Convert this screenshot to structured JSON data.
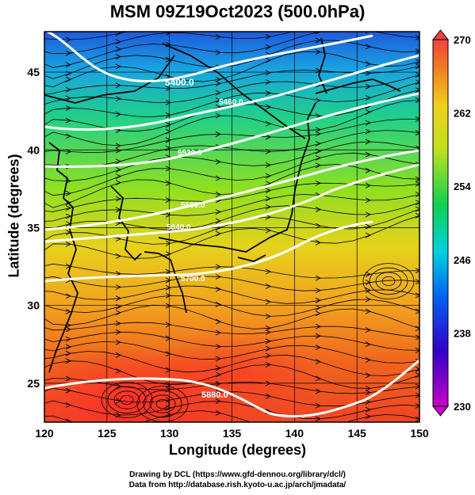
{
  "title": "MSM 09Z19Oct2023 (500.0hPa)",
  "x_axis": {
    "label": "Longitude (degrees)",
    "ticks": [
      "120",
      "125",
      "130",
      "135",
      "140",
      "145",
      "150"
    ],
    "min": 120,
    "max": 150
  },
  "y_axis": {
    "label": "Latitude  (degrees)",
    "ticks": [
      "25",
      "30",
      "35",
      "40",
      "45"
    ],
    "min": 22.5,
    "max": 47.6
  },
  "colorbar": {
    "ticks": [
      "270",
      "262",
      "254",
      "246",
      "238",
      "230"
    ],
    "min": 230,
    "max": 270
  },
  "contours": [
    {
      "label": "5400.0"
    },
    {
      "label": "5460.0"
    },
    {
      "label": "5520.0"
    },
    {
      "label": "5580.0"
    },
    {
      "label": "5640.0"
    },
    {
      "label": "5700.0"
    },
    {
      "label": "5880.0"
    }
  ],
  "credits": {
    "line1": "Drawing by DCL (https://www.gfd-dennou.org/library/dcl/)",
    "line2": "Data from http://database.rish.kyoto-u.ac.jp/arch/jmadata/"
  },
  "colors": {
    "cold": "#1e5adc",
    "warm": "#f04a1e",
    "contour": "#ffffff",
    "streamline": "#000000"
  }
}
